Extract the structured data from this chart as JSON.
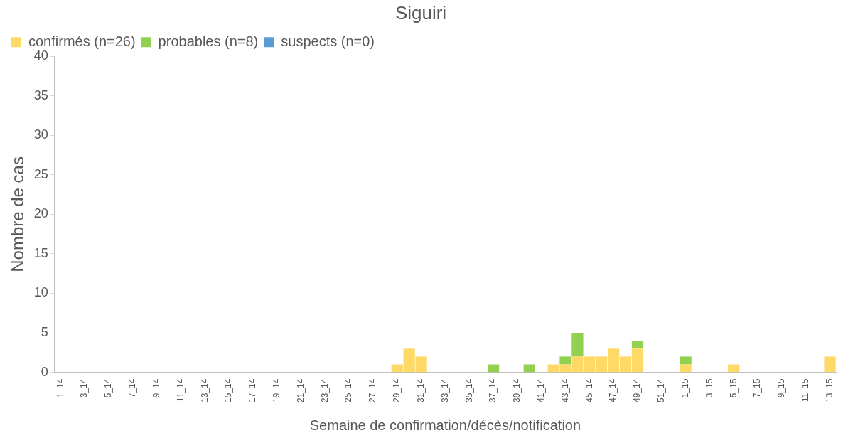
{
  "chart_data": {
    "type": "bar",
    "title": "Siguiri",
    "xlabel": "Semaine de confirmation/décès/notification",
    "ylabel": "Nombre de cas",
    "categories": [
      "1_14",
      null,
      "3_14",
      null,
      "5_14",
      null,
      "7_14",
      null,
      "9_14",
      null,
      "11_14",
      null,
      "13_14",
      null,
      "15_14",
      null,
      "17_14",
      null,
      "19_14",
      null,
      "21_14",
      null,
      "23_14",
      null,
      "25_14",
      null,
      "27_14",
      null,
      "29_14",
      null,
      "31_14",
      null,
      "33_14",
      null,
      "35_14",
      null,
      "37_14",
      null,
      "39_14",
      null,
      "41_14",
      null,
      "43_14",
      null,
      "45_14",
      null,
      "47_14",
      null,
      "49_14",
      null,
      "51_14",
      null,
      "1_15",
      null,
      "3_15",
      null,
      "5_15",
      null,
      "7_15",
      null,
      "9_15",
      null,
      "11_15",
      null,
      "13_15"
    ],
    "stacked": true,
    "series": [
      {
        "name": "confirmés (n=26)",
        "color": "#ffd966",
        "values": [
          0,
          0,
          0,
          0,
          0,
          0,
          0,
          0,
          0,
          0,
          0,
          0,
          0,
          0,
          0,
          0,
          0,
          0,
          0,
          0,
          0,
          0,
          0,
          0,
          0,
          0,
          0,
          0,
          1,
          3,
          2,
          0,
          0,
          0,
          0,
          0,
          0,
          0,
          0,
          0,
          0,
          1,
          1,
          2,
          2,
          2,
          3,
          2,
          3,
          0,
          0,
          0,
          1,
          0,
          0,
          0,
          1,
          0,
          0,
          0,
          0,
          0,
          0,
          0,
          2
        ]
      },
      {
        "name": "probables (n=8)",
        "color": "#92d050",
        "values": [
          0,
          0,
          0,
          0,
          0,
          0,
          0,
          0,
          0,
          0,
          0,
          0,
          0,
          0,
          0,
          0,
          0,
          0,
          0,
          0,
          0,
          0,
          0,
          0,
          0,
          0,
          0,
          0,
          0,
          0,
          0,
          0,
          0,
          0,
          0,
          0,
          1,
          0,
          0,
          1,
          0,
          0,
          1,
          3,
          0,
          0,
          0,
          0,
          1,
          0,
          0,
          0,
          1,
          0,
          0,
          0,
          0,
          0,
          0,
          0,
          0,
          0,
          0,
          0,
          0
        ]
      },
      {
        "name": "suspects (n=0)",
        "color": "#5b9bd5",
        "values": [
          0,
          0,
          0,
          0,
          0,
          0,
          0,
          0,
          0,
          0,
          0,
          0,
          0,
          0,
          0,
          0,
          0,
          0,
          0,
          0,
          0,
          0,
          0,
          0,
          0,
          0,
          0,
          0,
          0,
          0,
          0,
          0,
          0,
          0,
          0,
          0,
          0,
          0,
          0,
          0,
          0,
          0,
          0,
          0,
          0,
          0,
          0,
          0,
          0,
          0,
          0,
          0,
          0,
          0,
          0,
          0,
          0,
          0,
          0,
          0,
          0,
          0,
          0,
          0,
          0
        ]
      }
    ],
    "ylim": [
      0,
      40
    ],
    "yticks": [
      0,
      5,
      10,
      15,
      20,
      25,
      30,
      35,
      40
    ],
    "grid": false,
    "legend": "top left"
  }
}
